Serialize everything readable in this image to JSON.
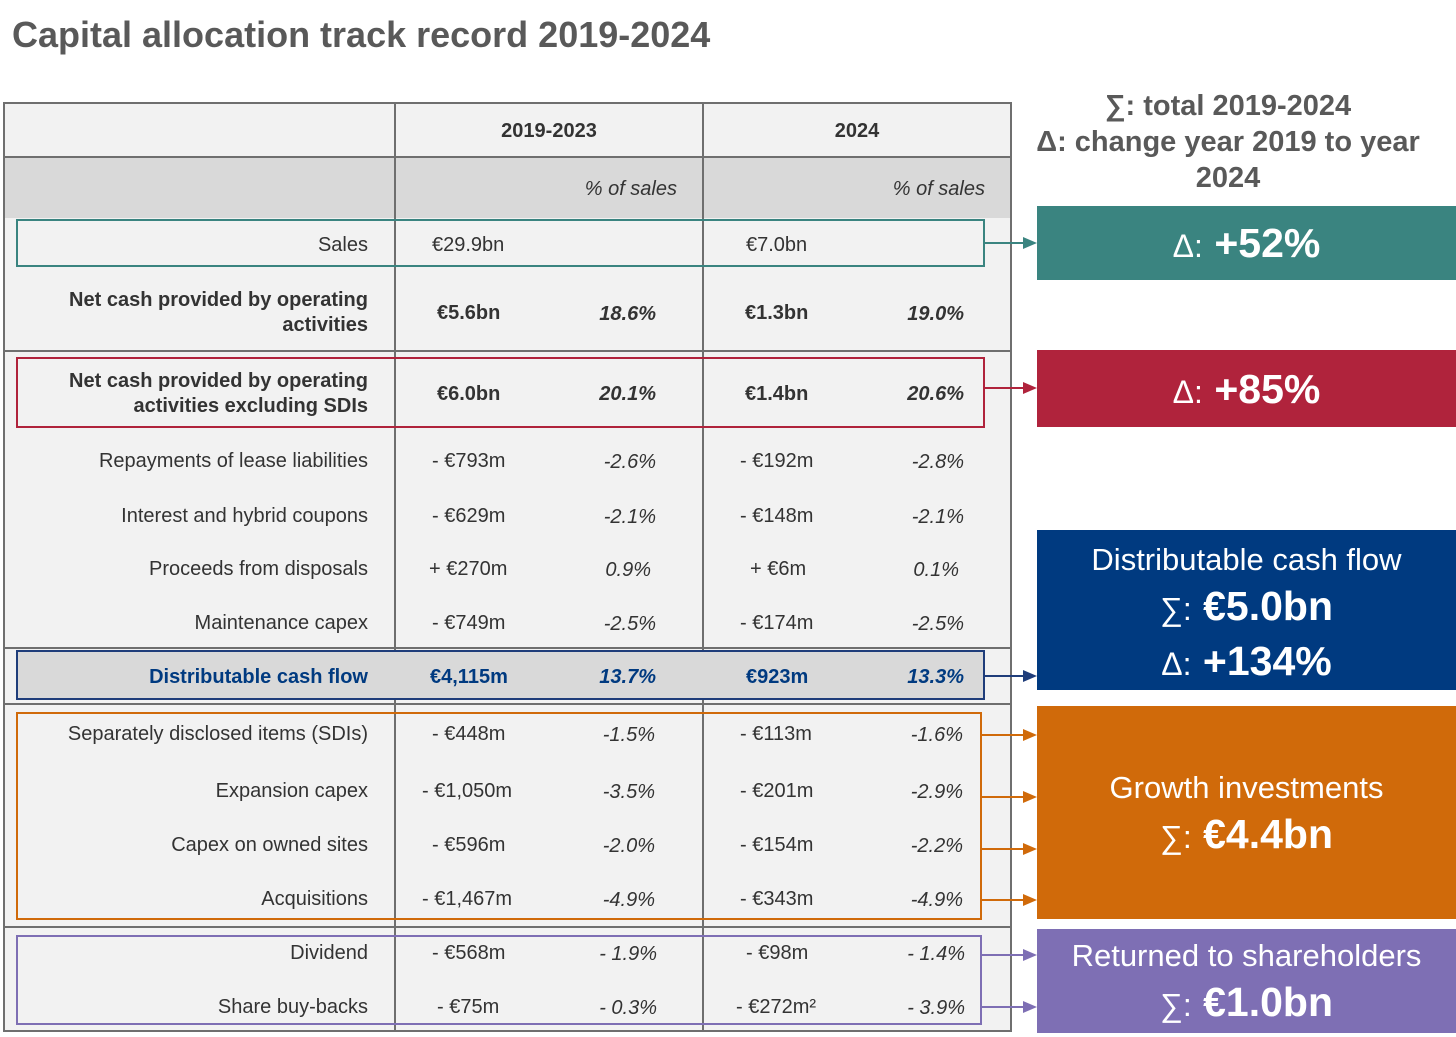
{
  "page": {
    "title": "Capital allocation track record 2019-2024"
  },
  "legend": {
    "sum_line": "∑: total 2019-2024",
    "delta_line": "Δ: change year 2019 to year 2024"
  },
  "table": {
    "headers": {
      "period_a": "2019-2023",
      "period_b": "2024",
      "pct_label_a": "% of sales",
      "pct_label_b": "% of sales"
    },
    "rows": [
      {
        "label": "Sales",
        "a_val": "€29.9bn",
        "a_pct": "",
        "b_val": "€7.0bn",
        "b_pct": ""
      },
      {
        "label": "Net cash provided by operating activities",
        "a_val": "€5.6bn",
        "a_pct": "18.6%",
        "b_val": "€1.3bn",
        "b_pct": "19.0%"
      },
      {
        "label": "Net cash provided by operating activities excluding SDIs",
        "a_val": "€6.0bn",
        "a_pct": "20.1%",
        "b_val": "€1.4bn",
        "b_pct": "20.6%"
      },
      {
        "label": "Repayments of lease liabilities",
        "a_val": "- €793m",
        "a_pct": "-2.6%",
        "b_val": "- €192m",
        "b_pct": "-2.8%"
      },
      {
        "label": "Interest and hybrid coupons",
        "a_val": "- €629m",
        "a_pct": "-2.1%",
        "b_val": "- €148m",
        "b_pct": "-2.1%"
      },
      {
        "label": "Proceeds from disposals",
        "a_val": "+ €270m",
        "a_pct": "0.9%",
        "b_val": "+ €6m",
        "b_pct": "0.1%"
      },
      {
        "label": "Maintenance capex",
        "a_val": "- €749m",
        "a_pct": "-2.5%",
        "b_val": "- €174m",
        "b_pct": "-2.5%"
      },
      {
        "label": "Distributable cash flow",
        "a_val": "€4,115m",
        "a_pct": "13.7%",
        "b_val": "€923m",
        "b_pct": "13.3%"
      },
      {
        "label": "Separately disclosed items (SDIs)",
        "a_val": "- €448m",
        "a_pct": "-1.5%",
        "b_val": "- €113m",
        "b_pct": "-1.6%"
      },
      {
        "label": "Expansion capex",
        "a_val": "- €1,050m",
        "a_pct": "-3.5%",
        "b_val": "- €201m",
        "b_pct": "-2.9%"
      },
      {
        "label": "Capex on owned sites",
        "a_val": "- €596m",
        "a_pct": "-2.0%",
        "b_val": "- €154m",
        "b_pct": "-2.2%"
      },
      {
        "label": "Acquisitions",
        "a_val": "- €1,467m",
        "a_pct": "-4.9%",
        "b_val": "- €343m",
        "b_pct": "-4.9%"
      },
      {
        "label": "Dividend",
        "a_val": "- €568m",
        "a_pct": "- 1.9%",
        "b_val": "- €98m",
        "b_pct": "- 1.4%"
      },
      {
        "label": "Share buy-backs",
        "a_val": "- €75m",
        "a_pct": "- 0.3%",
        "b_val": "- €272m²",
        "b_pct": "- 3.9%"
      }
    ]
  },
  "callouts": {
    "sales": {
      "delta": "Δ:",
      "value": "+52%"
    },
    "opcash": {
      "delta": "Δ:",
      "value": "+85%"
    },
    "dcf": {
      "title": "Distributable cash flow",
      "sum": "∑:",
      "sum_value": "€5.0bn",
      "delta": "Δ:",
      "delta_value": "+134%"
    },
    "growth": {
      "title": "Growth investments",
      "sum": "∑:",
      "sum_value": "€4.4bn"
    },
    "returned": {
      "title": "Returned to shareholders",
      "sum": "∑:",
      "sum_value": "€1.0bn"
    }
  },
  "colors": {
    "teal": "#3a8480",
    "red": "#b0233c",
    "blue": "#003a80",
    "orange": "#d06a0a",
    "purple": "#7e6fb4"
  }
}
